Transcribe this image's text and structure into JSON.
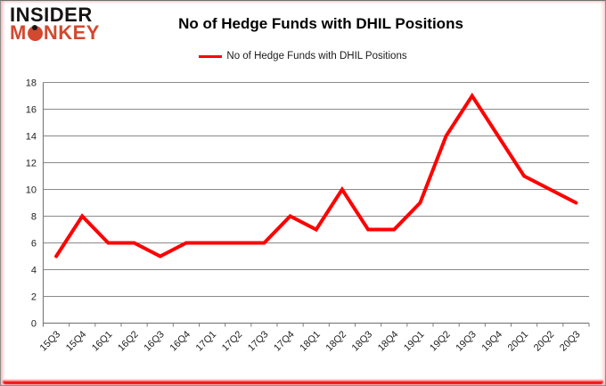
{
  "logo": {
    "line1": "INSIDER",
    "line2_pre": "M",
    "line2_post": "NKEY"
  },
  "title": "No of Hedge Funds with DHIL Positions",
  "legend": {
    "label": "No of Hedge Funds with DHIL Positions"
  },
  "colors": {
    "line": "#fe0000",
    "grid": "#8a8a8a",
    "axis": "#7f7f7f",
    "tick_label": "#1f1f1f",
    "title": "#000000",
    "logo_black": "#161313",
    "logo_red": "#d2492f",
    "bottom_glow_red": "#fb0a0a"
  },
  "chart_data": {
    "type": "line",
    "title": "No of Hedge Funds with DHIL Positions",
    "series": [
      {
        "name": "No of Hedge Funds with DHIL Positions",
        "color": "#fe0000",
        "values": [
          5,
          8,
          6,
          6,
          5,
          6,
          6,
          6,
          6,
          8,
          7,
          10,
          7,
          7,
          9,
          14,
          17,
          14,
          11,
          10,
          9
        ]
      }
    ],
    "categories": [
      "15Q3",
      "15Q4",
      "16Q1",
      "16Q2",
      "16Q3",
      "16Q4",
      "17Q1",
      "17Q2",
      "17Q3",
      "17Q4",
      "18Q1",
      "18Q2",
      "18Q3",
      "18Q4",
      "19Q1",
      "19Q2",
      "19Q3",
      "19Q4",
      "20Q1",
      "20Q2",
      "20Q3"
    ],
    "xlabel": "",
    "ylabel": "",
    "ylim": [
      0,
      18
    ],
    "ytick_step": 2,
    "grid": "horizontal",
    "legend_position": "top-center",
    "x_label_rotation": -45
  }
}
